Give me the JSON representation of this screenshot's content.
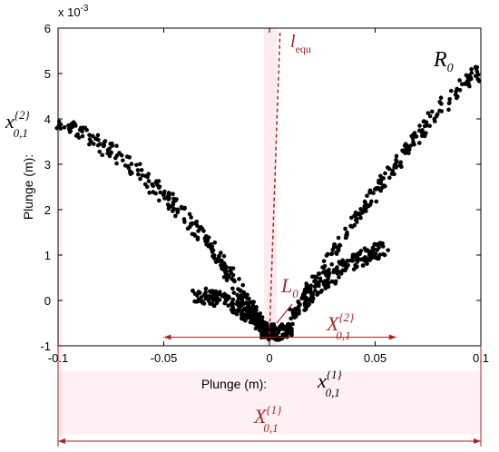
{
  "chart_data": {
    "type": "scatter",
    "xlabel": "Plunge (m):",
    "ylabel": "Plunge (m):",
    "exponent_label": "x 10",
    "exponent_power": "-3",
    "xlim": [
      -0.1,
      0.1
    ],
    "ylim": [
      -1,
      6
    ],
    "x_ticks": [
      -0.1,
      -0.05,
      0,
      0.05,
      0.1
    ],
    "x_tick_labels": [
      "-0.1",
      "-0.05",
      "0",
      "0.05",
      "0.1"
    ],
    "y_ticks": [
      -1,
      0,
      1,
      2,
      3,
      4,
      5,
      6
    ],
    "y_tick_labels": [
      "-1",
      "0",
      "1",
      "2",
      "3",
      "4",
      "5",
      "6"
    ],
    "grid": false,
    "series": [
      {
        "points_description": "noisy V-shaped point cloud of measured plunge (y, ×10^-3 m) vs plunge (x, m)",
        "segments": [
          {
            "x": [
              -0.1,
              -0.08,
              -0.06,
              -0.045,
              -0.03,
              -0.02,
              -0.01,
              -0.005
            ],
            "y": [
              3.95,
              3.45,
              2.75,
              2.1,
              1.35,
              0.65,
              -0.1,
              -0.45
            ]
          },
          {
            "x": [
              -0.035,
              -0.025,
              -0.015,
              -0.008,
              -0.003
            ],
            "y": [
              0.15,
              0.05,
              -0.15,
              -0.4,
              -0.55
            ]
          },
          {
            "x": [
              -0.003,
              0.0,
              0.005,
              0.01
            ],
            "y": [
              -0.65,
              -0.7,
              -0.7,
              -0.65
            ]
          },
          {
            "x": [
              0.01,
              0.02,
              0.035,
              0.05,
              0.065,
              0.08,
              0.1
            ],
            "y": [
              -0.4,
              0.3,
              1.4,
              2.4,
              3.3,
              4.2,
              5.1
            ]
          },
          {
            "x": [
              0.015,
              0.025,
              0.035,
              0.045,
              0.055
            ],
            "y": [
              -0.1,
              0.35,
              0.75,
              0.95,
              1.15
            ]
          }
        ]
      }
    ],
    "annotations": {
      "curve_label_main": "R",
      "curve_label_sub": "0",
      "line_label_main": "l",
      "line_label_sub": "equ",
      "point_label_main": "L",
      "point_label_sub": "0",
      "x_var_main": "x",
      "x_var_sub": "0,1",
      "x_var_sup": "{1}",
      "y_var_main": "x",
      "y_var_sub": "0,1",
      "y_var_sup": "{2}",
      "inner_span_main": "X",
      "inner_span_sub": "0,1",
      "inner_span_sup": "{2}",
      "outer_span_main": "X",
      "outer_span_sub": "0,1",
      "outer_span_sup": "{1}"
    },
    "reference_line": {
      "x": [
        0.0,
        0.005
      ],
      "y": [
        -0.75,
        5.9
      ]
    },
    "inner_span_x": [
      -0.05,
      0.06
    ],
    "outer_span_x": [
      -0.1,
      0.1
    ],
    "colors": {
      "points": "#000000",
      "annotation": "#a0282a",
      "highlight": "#f6c7d2"
    }
  }
}
